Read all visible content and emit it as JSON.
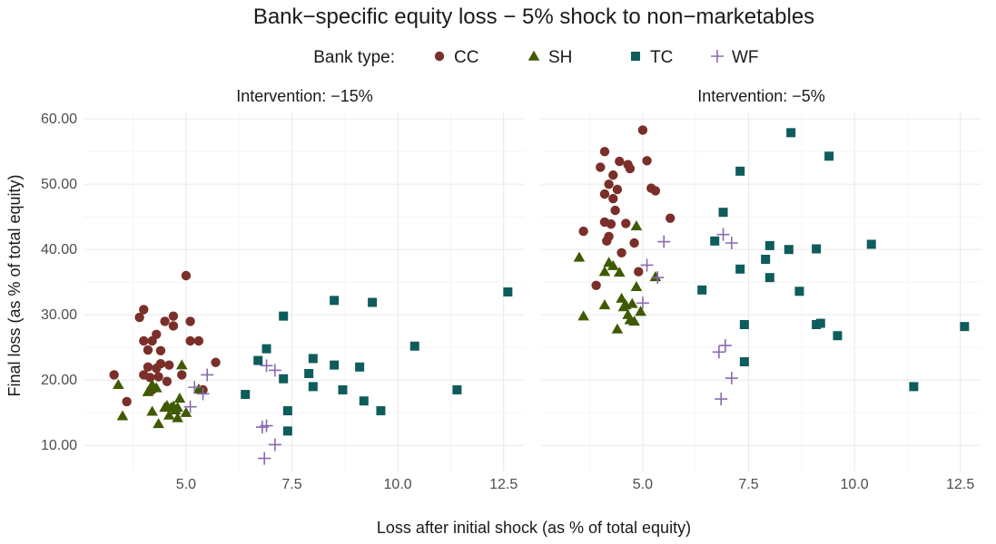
{
  "chart_data": {
    "type": "scatter",
    "title": "Bank−specific equity loss − 5% shock to non−marketables",
    "xlabel": "Loss after initial shock (as % of total equity)",
    "ylabel": "Final loss (as % of total equity)",
    "legend": {
      "title": "Bank type:",
      "position": "top",
      "entries": [
        {
          "name": "CC",
          "shape": "circle",
          "color": "#7b2f2a"
        },
        {
          "name": "SH",
          "shape": "triangle",
          "color": "#3f5a00"
        },
        {
          "name": "TC",
          "shape": "square",
          "color": "#0f5c5c"
        },
        {
          "name": "WF",
          "shape": "plus",
          "color": "#8a6ab0"
        }
      ]
    },
    "xlim": [
      2.6,
      13.0
    ],
    "ylim": [
      6.0,
      61.0
    ],
    "x_ticks": [
      "5.0",
      "7.5",
      "10.0",
      "12.5"
    ],
    "x_tick_values": [
      5.0,
      7.5,
      10.0,
      12.5
    ],
    "y_ticks": [
      "10.00",
      "20.00",
      "30.00",
      "40.00",
      "50.00",
      "60.00"
    ],
    "y_tick_values": [
      10,
      20,
      30,
      40,
      50,
      60
    ],
    "grid": true,
    "panels": [
      {
        "label": "Intervention: −15%",
        "series": [
          {
            "name": "CC",
            "points": [
              [
                3.3,
                20.8
              ],
              [
                3.6,
                16.7
              ],
              [
                3.9,
                29.6
              ],
              [
                4.0,
                30.8
              ],
              [
                4.0,
                20.8
              ],
              [
                4.1,
                22.0
              ],
              [
                4.1,
                24.6
              ],
              [
                4.2,
                26.0
              ],
              [
                4.15,
                20.4
              ],
              [
                4.3,
                21.8
              ],
              [
                4.3,
                27.0
              ],
              [
                4.4,
                24.5
              ],
              [
                4.4,
                22.5
              ],
              [
                4.5,
                29.0
              ],
              [
                4.55,
                19.8
              ],
              [
                4.6,
                22.3
              ],
              [
                4.7,
                28.3
              ],
              [
                4.7,
                29.8
              ],
              [
                4.35,
                20.5
              ],
              [
                4.9,
                20.8
              ],
              [
                5.0,
                36.0
              ],
              [
                5.1,
                29.0
              ],
              [
                5.1,
                26.0
              ],
              [
                5.3,
                26.0
              ],
              [
                5.7,
                22.7
              ],
              [
                5.4,
                18.5
              ],
              [
                4.0,
                26.0
              ],
              [
                4.2,
                18.5
              ]
            ]
          },
          {
            "name": "SH",
            "points": [
              [
                3.4,
                19.3
              ],
              [
                3.5,
                14.5
              ],
              [
                4.1,
                18.2
              ],
              [
                4.2,
                15.2
              ],
              [
                4.2,
                19.3
              ],
              [
                4.3,
                18.8
              ],
              [
                4.35,
                13.3
              ],
              [
                4.5,
                15.8
              ],
              [
                4.6,
                14.6
              ],
              [
                4.65,
                15.8
              ],
              [
                4.7,
                16.0
              ],
              [
                4.8,
                14.2
              ],
              [
                4.8,
                15.8
              ],
              [
                4.85,
                17.2
              ],
              [
                4.9,
                22.3
              ],
              [
                5.0,
                15.0
              ],
              [
                5.3,
                18.6
              ],
              [
                4.55,
                16.1
              ],
              [
                4.75,
                15.4
              ]
            ]
          },
          {
            "name": "TC",
            "points": [
              [
                6.4,
                17.8
              ],
              [
                6.7,
                23.0
              ],
              [
                6.9,
                24.8
              ],
              [
                7.3,
                29.8
              ],
              [
                7.3,
                20.2
              ],
              [
                7.4,
                15.3
              ],
              [
                7.4,
                12.2
              ],
              [
                7.9,
                21.0
              ],
              [
                8.0,
                23.3
              ],
              [
                8.0,
                19.0
              ],
              [
                8.5,
                32.2
              ],
              [
                8.5,
                22.3
              ],
              [
                8.7,
                18.5
              ],
              [
                9.1,
                22.0
              ],
              [
                9.2,
                16.8
              ],
              [
                9.4,
                31.9
              ],
              [
                9.6,
                15.3
              ],
              [
                10.4,
                25.2
              ],
              [
                11.4,
                18.5
              ],
              [
                12.6,
                33.5
              ]
            ]
          },
          {
            "name": "WF",
            "points": [
              [
                5.1,
                15.9
              ],
              [
                5.2,
                18.9
              ],
              [
                5.4,
                17.9
              ],
              [
                5.5,
                20.8
              ],
              [
                6.8,
                12.8
              ],
              [
                6.9,
                22.2
              ],
              [
                6.9,
                13.0
              ],
              [
                7.1,
                21.5
              ],
              [
                7.1,
                10.1
              ],
              [
                6.85,
                8.0
              ]
            ]
          }
        ]
      },
      {
        "label": "Intervention: −5%",
        "series": [
          {
            "name": "CC",
            "points": [
              [
                3.6,
                42.8
              ],
              [
                3.9,
                34.5
              ],
              [
                4.0,
                52.6
              ],
              [
                4.1,
                55.0
              ],
              [
                4.1,
                48.5
              ],
              [
                4.1,
                44.2
              ],
              [
                4.15,
                41.3
              ],
              [
                4.2,
                50.0
              ],
              [
                4.25,
                43.9
              ],
              [
                4.3,
                51.4
              ],
              [
                4.3,
                47.8
              ],
              [
                4.35,
                46.0
              ],
              [
                4.4,
                49.2
              ],
              [
                4.45,
                53.5
              ],
              [
                4.5,
                39.5
              ],
              [
                4.6,
                44.0
              ],
              [
                4.65,
                53.0
              ],
              [
                4.7,
                52.4
              ],
              [
                4.8,
                41.0
              ],
              [
                4.9,
                36.6
              ],
              [
                5.0,
                58.3
              ],
              [
                5.1,
                53.6
              ],
              [
                5.2,
                49.4
              ],
              [
                5.3,
                49.0
              ],
              [
                5.65,
                44.8
              ],
              [
                4.2,
                42.0
              ]
            ]
          },
          {
            "name": "SH",
            "points": [
              [
                3.5,
                38.8
              ],
              [
                3.6,
                29.8
              ],
              [
                4.1,
                31.5
              ],
              [
                4.2,
                38.0
              ],
              [
                4.3,
                37.5
              ],
              [
                4.4,
                27.8
              ],
              [
                4.45,
                36.5
              ],
              [
                4.5,
                32.5
              ],
              [
                4.6,
                31.5
              ],
              [
                4.65,
                30.0
              ],
              [
                4.7,
                29.2
              ],
              [
                4.75,
                31.7
              ],
              [
                4.8,
                29.0
              ],
              [
                4.85,
                43.6
              ],
              [
                4.85,
                34.3
              ],
              [
                4.95,
                30.5
              ],
              [
                5.3,
                35.8
              ],
              [
                4.1,
                36.6
              ],
              [
                4.55,
                31.2
              ]
            ]
          },
          {
            "name": "TC",
            "points": [
              [
                6.4,
                33.8
              ],
              [
                6.7,
                41.3
              ],
              [
                6.9,
                45.7
              ],
              [
                7.3,
                52.0
              ],
              [
                7.3,
                37.0
              ],
              [
                7.4,
                28.5
              ],
              [
                7.4,
                22.8
              ],
              [
                7.9,
                38.5
              ],
              [
                8.0,
                40.6
              ],
              [
                8.0,
                35.7
              ],
              [
                8.5,
                57.9
              ],
              [
                8.45,
                40.0
              ],
              [
                8.7,
                33.6
              ],
              [
                9.1,
                40.1
              ],
              [
                9.2,
                28.7
              ],
              [
                9.4,
                54.3
              ],
              [
                9.6,
                26.8
              ],
              [
                10.4,
                40.8
              ],
              [
                11.4,
                19.0
              ],
              [
                12.6,
                28.2
              ],
              [
                9.1,
                28.5
              ]
            ]
          },
          {
            "name": "WF",
            "points": [
              [
                5.0,
                31.8
              ],
              [
                5.1,
                37.6
              ],
              [
                5.35,
                35.7
              ],
              [
                5.5,
                41.2
              ],
              [
                6.8,
                24.3
              ],
              [
                6.9,
                42.3
              ],
              [
                6.95,
                25.3
              ],
              [
                7.1,
                41.0
              ],
              [
                7.1,
                20.3
              ],
              [
                6.85,
                17.1
              ]
            ]
          }
        ]
      }
    ]
  }
}
